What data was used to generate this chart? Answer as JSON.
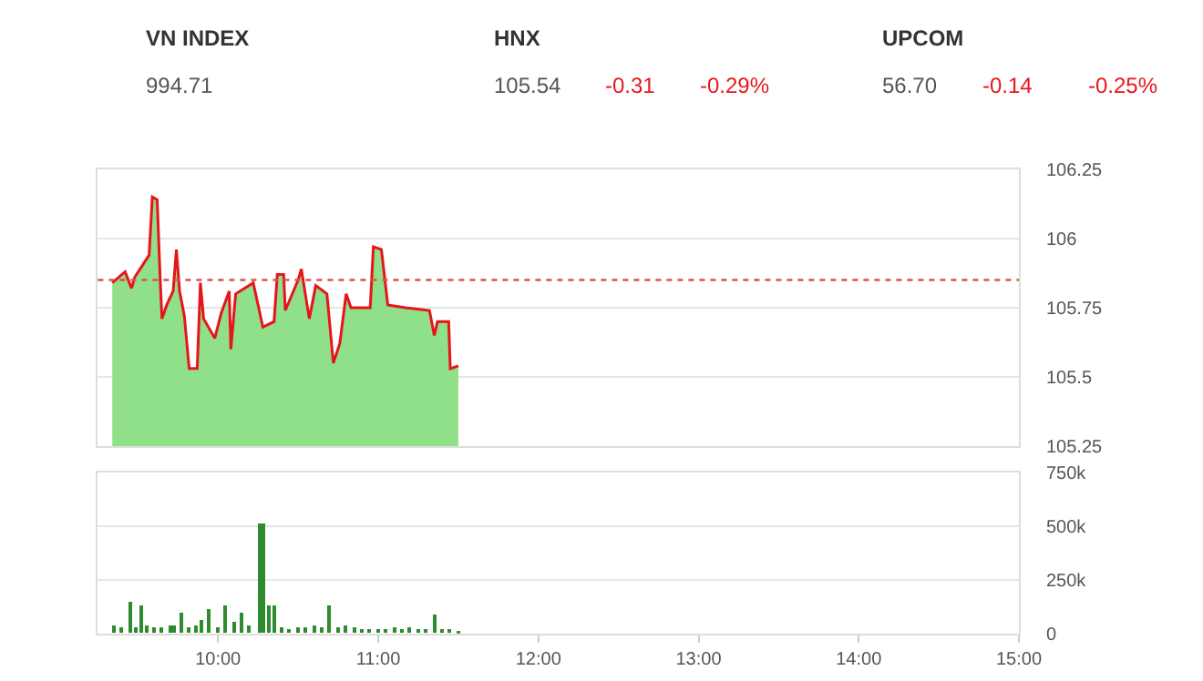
{
  "chart_data": [
    {
      "type": "other",
      "annotations": [
        "VN INDEX",
        "994.71",
        "HNX",
        "105.54",
        "-0.31",
        "-0.29%",
        "UPCOM",
        "56.70",
        "-0.14",
        "-0.25%"
      ]
    },
    {
      "type": "area",
      "xlim": [
        9.25,
        15
      ],
      "ylim": [
        105.25,
        106.25
      ],
      "yticks": [
        105.25,
        105.5,
        105.75,
        106,
        106.25
      ],
      "tick_labels": "y",
      "grid": "y",
      "ref_lines": [
        {
          "axis": "y",
          "value": 105.85,
          "color": "#d9534f",
          "line_style": "dotted"
        }
      ],
      "series": [
        {
          "type": "area",
          "color": "#90e089",
          "x": [
            9.34,
            9.42,
            9.46,
            9.48,
            9.57,
            9.59,
            9.62,
            9.64,
            9.65,
            9.68,
            9.72,
            9.74,
            9.76,
            9.79,
            9.82,
            9.87,
            9.89,
            9.91,
            9.98,
            10.02,
            10.07,
            10.08,
            10.11,
            10.22,
            10.28,
            10.35,
            10.37,
            10.41,
            10.42,
            10.5,
            10.52,
            10.57,
            10.61,
            10.68,
            10.72,
            10.76,
            10.8,
            10.83,
            10.95,
            10.97,
            11.02,
            11.06,
            11.17,
            11.32,
            11.35,
            11.37,
            11.44,
            11.45,
            11.5
          ],
          "values": [
            105.84,
            105.88,
            105.82,
            105.86,
            105.94,
            106.15,
            106.14,
            105.84,
            105.71,
            105.76,
            105.81,
            105.96,
            105.81,
            105.72,
            105.53,
            105.53,
            105.84,
            105.71,
            105.64,
            105.73,
            105.81,
            105.6,
            105.8,
            105.84,
            105.68,
            105.7,
            105.87,
            105.87,
            105.74,
            105.85,
            105.89,
            105.71,
            105.83,
            105.8,
            105.55,
            105.62,
            105.8,
            105.75,
            105.75,
            105.97,
            105.96,
            105.76,
            105.75,
            105.74,
            105.65,
            105.7,
            105.7,
            105.53,
            105.54
          ]
        },
        {
          "type": "line",
          "color": "#e8141b",
          "x": [
            9.34,
            9.42,
            9.46,
            9.48,
            9.57,
            9.59,
            9.62,
            9.64,
            9.65,
            9.68,
            9.72,
            9.74,
            9.76,
            9.79,
            9.82,
            9.87,
            9.89,
            9.91,
            9.98,
            10.02,
            10.07,
            10.08,
            10.11,
            10.22,
            10.28,
            10.35,
            10.37,
            10.41,
            10.42,
            10.5,
            10.52,
            10.57,
            10.61,
            10.68,
            10.72,
            10.76,
            10.8,
            10.83,
            10.95,
            10.97,
            11.02,
            11.06,
            11.17,
            11.32,
            11.35,
            11.37,
            11.44,
            11.45,
            11.5
          ],
          "values": [
            105.84,
            105.88,
            105.82,
            105.86,
            105.94,
            106.15,
            106.14,
            105.84,
            105.71,
            105.76,
            105.81,
            105.96,
            105.81,
            105.72,
            105.53,
            105.53,
            105.84,
            105.71,
            105.64,
            105.73,
            105.81,
            105.6,
            105.8,
            105.84,
            105.68,
            105.7,
            105.87,
            105.87,
            105.74,
            105.85,
            105.89,
            105.71,
            105.83,
            105.8,
            105.55,
            105.62,
            105.8,
            105.75,
            105.75,
            105.97,
            105.96,
            105.76,
            105.75,
            105.74,
            105.65,
            105.7,
            105.7,
            105.53,
            105.54
          ]
        }
      ]
    },
    {
      "type": "bar",
      "xlim": [
        9.25,
        15
      ],
      "ylim": [
        0,
        750000
      ],
      "yticks": [
        0,
        {
          "value": 250000,
          "label": "250k"
        },
        {
          "value": 500000,
          "label": "500k"
        },
        {
          "value": 750000,
          "label": "750k"
        }
      ],
      "xticks": [
        {
          "value": 10,
          "label": "10:00"
        },
        {
          "value": 11,
          "label": "11:00"
        },
        {
          "value": 12,
          "label": "12:00"
        },
        {
          "value": 13,
          "label": "13:00"
        },
        {
          "value": 14,
          "label": "14:00"
        },
        {
          "value": 15,
          "label": "15:00"
        }
      ],
      "grid": "y",
      "series": [
        {
          "color": "#2e8b2e",
          "x": [
            9.35,
            9.4,
            9.45,
            9.49,
            9.52,
            9.56,
            9.6,
            9.65,
            9.7,
            9.73,
            9.77,
            9.82,
            9.86,
            9.9,
            9.95,
            10.0,
            10.05,
            10.1,
            10.15,
            10.2,
            10.26,
            10.29,
            10.32,
            10.35,
            10.4,
            10.45,
            10.5,
            10.55,
            10.6,
            10.65,
            10.7,
            10.75,
            10.8,
            10.85,
            10.9,
            10.95,
            11.0,
            11.05,
            11.1,
            11.15,
            11.2,
            11.25,
            11.3,
            11.35,
            11.4,
            11.45,
            11.5
          ],
          "values": [
            40000,
            30000,
            150000,
            30000,
            130000,
            40000,
            30000,
            30000,
            40000,
            40000,
            100000,
            30000,
            40000,
            60000,
            110000,
            30000,
            130000,
            50000,
            100000,
            40000,
            510000,
            510000,
            130000,
            130000,
            30000,
            20000,
            30000,
            30000,
            40000,
            30000,
            130000,
            30000,
            40000,
            30000,
            20000,
            20000,
            20000,
            20000,
            30000,
            20000,
            30000,
            20000,
            20000,
            90000,
            20000,
            20000,
            10000
          ]
        }
      ]
    }
  ]
}
